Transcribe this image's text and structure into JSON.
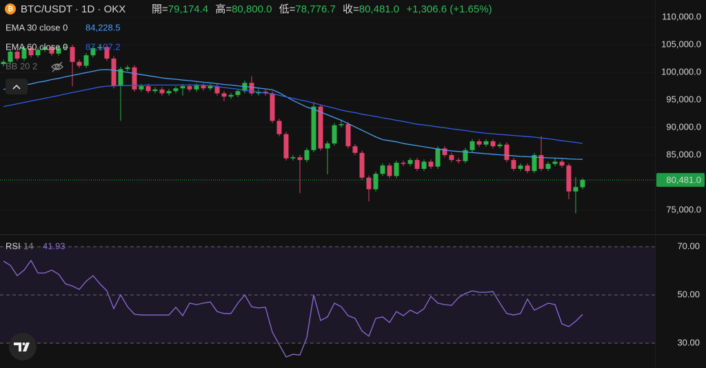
{
  "chart_data": [
    {
      "type": "candlestick",
      "title": "BTC/USDT · 1D · OKX",
      "quote": [
        {
          "label": "開=",
          "text": "79,174.4"
        },
        {
          "label": "高=",
          "text": "80,800.0"
        },
        {
          "label": "低=",
          "text": "78,776.7"
        },
        {
          "label": "收=",
          "text": "80,481.0"
        }
      ],
      "change": "+1,306.6 (+1.65%)",
      "up_color": "#2bb34a",
      "down_color": "#e0426a",
      "open": [
        101500,
        101900,
        103750,
        102500,
        104400,
        103100,
        104100,
        104600,
        103400,
        104400,
        104600,
        101900,
        101200,
        103100,
        104400,
        104600,
        102500,
        97500,
        100600,
        100900,
        96900,
        97500,
        96600,
        96900,
        96200,
        96600,
        97100,
        97500,
        96900,
        97600,
        97100,
        97500,
        96200,
        95600,
        95900,
        96600,
        98100,
        96200,
        96500,
        96200,
        91200,
        88800,
        84400,
        84600,
        84100,
        85900,
        93800,
        86200,
        87100,
        90400,
        90600,
        86600,
        85400,
        80900,
        78800,
        81600,
        83100,
        81200,
        83600,
        83400,
        84100,
        82500,
        83800,
        82900,
        86200,
        85000,
        84100,
        83900,
        85900,
        87500,
        86900,
        87500,
        86600,
        86900,
        84100,
        82500,
        83100,
        82100,
        85000,
        82500,
        83400,
        83800,
        83100,
        78400,
        79174.4
      ],
      "high": [
        102300,
        104150,
        104150,
        104800,
        104800,
        104500,
        105000,
        105000,
        104800,
        105000,
        105000,
        102300,
        103500,
        104800,
        105000,
        105000,
        102900,
        101000,
        101300,
        101300,
        97900,
        97900,
        97300,
        97300,
        97000,
        97500,
        97900,
        97900,
        98000,
        98000,
        97900,
        97900,
        96600,
        96300,
        97000,
        98500,
        99300,
        96900,
        96900,
        96600,
        91600,
        89200,
        85000,
        85000,
        86300,
        94600,
        94200,
        87500,
        90800,
        91400,
        91000,
        87000,
        85800,
        81300,
        82000,
        83500,
        83500,
        84000,
        84000,
        84500,
        84500,
        84200,
        84200,
        86600,
        86600,
        85400,
        84500,
        86300,
        87900,
        87900,
        87900,
        87900,
        87300,
        87300,
        84500,
        83500,
        83500,
        85400,
        88400,
        83800,
        84500,
        84200,
        83500,
        81000,
        80800
      ],
      "low": [
        101100,
        101500,
        102100,
        102100,
        102700,
        102700,
        103700,
        103000,
        103000,
        104000,
        97500,
        100800,
        100800,
        102700,
        104000,
        102100,
        97100,
        91200,
        100200,
        96500,
        96500,
        96200,
        96200,
        95800,
        95800,
        96200,
        95800,
        96500,
        96500,
        96700,
        96700,
        95800,
        94800,
        95200,
        95500,
        96200,
        95800,
        95800,
        95800,
        90800,
        88400,
        84000,
        84000,
        78100,
        83700,
        85500,
        85800,
        81500,
        86700,
        90000,
        86200,
        85000,
        80500,
        76600,
        78400,
        81200,
        80800,
        80800,
        83000,
        83000,
        82100,
        82100,
        82500,
        82500,
        84600,
        83700,
        83500,
        83500,
        85500,
        86500,
        86500,
        86200,
        86200,
        83700,
        82100,
        82100,
        81700,
        81700,
        82100,
        82100,
        83000,
        82700,
        77000,
        74400,
        78776.7
      ],
      "close": [
        101900,
        103750,
        102500,
        104400,
        103100,
        104100,
        104600,
        103400,
        104400,
        104600,
        101900,
        101200,
        103100,
        104400,
        104600,
        102500,
        97500,
        100600,
        100900,
        96900,
        97500,
        96600,
        96900,
        96200,
        96600,
        97100,
        97500,
        96900,
        97600,
        97100,
        97500,
        96200,
        95600,
        95900,
        96600,
        98100,
        96200,
        96500,
        96200,
        91200,
        88800,
        84400,
        84600,
        84100,
        85900,
        93800,
        86200,
        87100,
        90400,
        90600,
        86600,
        85400,
        80900,
        78800,
        81600,
        83100,
        81200,
        83600,
        83400,
        84100,
        82500,
        83800,
        82900,
        86200,
        85000,
        84100,
        83900,
        85900,
        87500,
        86900,
        87500,
        86600,
        86900,
        84100,
        82500,
        83100,
        82100,
        85000,
        82500,
        83400,
        83800,
        83100,
        78400,
        79200,
        80481
      ],
      "series": [
        {
          "name": "EMA 30 close 0",
          "value_label": "84,228.5",
          "color": "#4a9ef5",
          "values": [
            96900,
            97150,
            97400,
            97700,
            97900,
            98200,
            98400,
            98700,
            98900,
            99200,
            99450,
            99700,
            99950,
            100200,
            100450,
            100500,
            100400,
            100200,
            100000,
            99800,
            99600,
            99400,
            99200,
            99000,
            98850,
            98750,
            98600,
            98500,
            98350,
            98200,
            98100,
            97950,
            97800,
            97700,
            97550,
            97450,
            97300,
            97150,
            97000,
            96850,
            96300,
            95600,
            94900,
            94300,
            93700,
            93300,
            92800,
            92300,
            91800,
            91300,
            90700,
            90100,
            89500,
            88900,
            88300,
            87800,
            87600,
            87400,
            87100,
            86900,
            86700,
            86500,
            86300,
            86100,
            85900,
            85750,
            85650,
            85550,
            85450,
            85350,
            85250,
            85150,
            85050,
            84950,
            84850,
            84750,
            84700,
            84650,
            84550,
            84500,
            84450,
            84400,
            84300,
            84250,
            84228.5
          ]
        },
        {
          "name": "EMA 60 close 0",
          "value_label": "87,107.2",
          "color": "#2f5fe8",
          "values": [
            93800,
            94050,
            94300,
            94550,
            94800,
            95050,
            95300,
            95550,
            95800,
            96100,
            96350,
            96600,
            96850,
            97100,
            97350,
            97500,
            97550,
            97600,
            97600,
            97650,
            97650,
            97700,
            97700,
            97700,
            97700,
            97700,
            97700,
            97700,
            97700,
            97700,
            97600,
            97450,
            97250,
            97100,
            96950,
            96750,
            96600,
            96400,
            96250,
            96100,
            95850,
            95550,
            95300,
            95000,
            94750,
            94450,
            94100,
            93800,
            93500,
            93150,
            92900,
            92700,
            92400,
            92200,
            92000,
            91750,
            91550,
            91300,
            91100,
            90850,
            90600,
            90450,
            90300,
            90100,
            89950,
            89750,
            89600,
            89450,
            89250,
            89100,
            88950,
            88850,
            88750,
            88650,
            88550,
            88450,
            88350,
            88250,
            88100,
            87950,
            87800,
            87600,
            87450,
            87300,
            87107.2
          ]
        }
      ],
      "hidden_indicator": "BB 20 2",
      "last_price_label": "80,481.0",
      "ylim": [
        70625,
        113125
      ],
      "yticks": [
        {
          "value": 75000,
          "label": "75,000.0"
        },
        {
          "value": 80000,
          "label": "80,000.0"
        },
        {
          "value": 85000,
          "label": "85,000.0"
        },
        {
          "value": 90000,
          "label": "90,000.0"
        },
        {
          "value": 95000,
          "label": "95,000.0"
        },
        {
          "value": 100000,
          "label": "100,000.0"
        },
        {
          "value": 105000,
          "label": "105,000.0"
        },
        {
          "value": 110000,
          "label": "110,000.0"
        }
      ]
    },
    {
      "type": "line",
      "series": [
        {
          "name": "RSI",
          "param": "14",
          "color": "#8e6bd6",
          "values": [
            64.0,
            62.3,
            58.0,
            60.3,
            64.3,
            59.1,
            59.1,
            60.3,
            58.6,
            54.6,
            53.7,
            52.3,
            55.7,
            58.0,
            54.6,
            51.7,
            44.3,
            50.0,
            45.1,
            42.0,
            41.7,
            41.7,
            41.7,
            41.7,
            41.7,
            44.9,
            41.4,
            46.6,
            46.0,
            46.6,
            47.1,
            43.1,
            42.3,
            42.3,
            46.6,
            50.0,
            45.1,
            44.6,
            44.9,
            34.6,
            29.4,
            24.3,
            25.4,
            25.1,
            32.3,
            50.0,
            39.4,
            40.9,
            46.6,
            45.1,
            41.4,
            40.3,
            35.1,
            32.9,
            40.3,
            40.9,
            38.6,
            43.1,
            41.4,
            43.7,
            42.3,
            44.3,
            49.4,
            46.6,
            46.0,
            45.7,
            48.9,
            50.6,
            51.7,
            51.1,
            51.1,
            51.4,
            46.6,
            42.3,
            41.7,
            42.3,
            48.3,
            43.7,
            45.1,
            46.6,
            46.0,
            38.0,
            36.9,
            39.1,
            41.93
          ]
        }
      ],
      "band_color": "#1c1828",
      "ylim": [
        19.71,
        74.57
      ],
      "yticks": [
        {
          "value": 30,
          "label": "30.00"
        },
        {
          "value": 50,
          "label": "50.00"
        },
        {
          "value": 70,
          "label": "70.00"
        }
      ]
    }
  ]
}
